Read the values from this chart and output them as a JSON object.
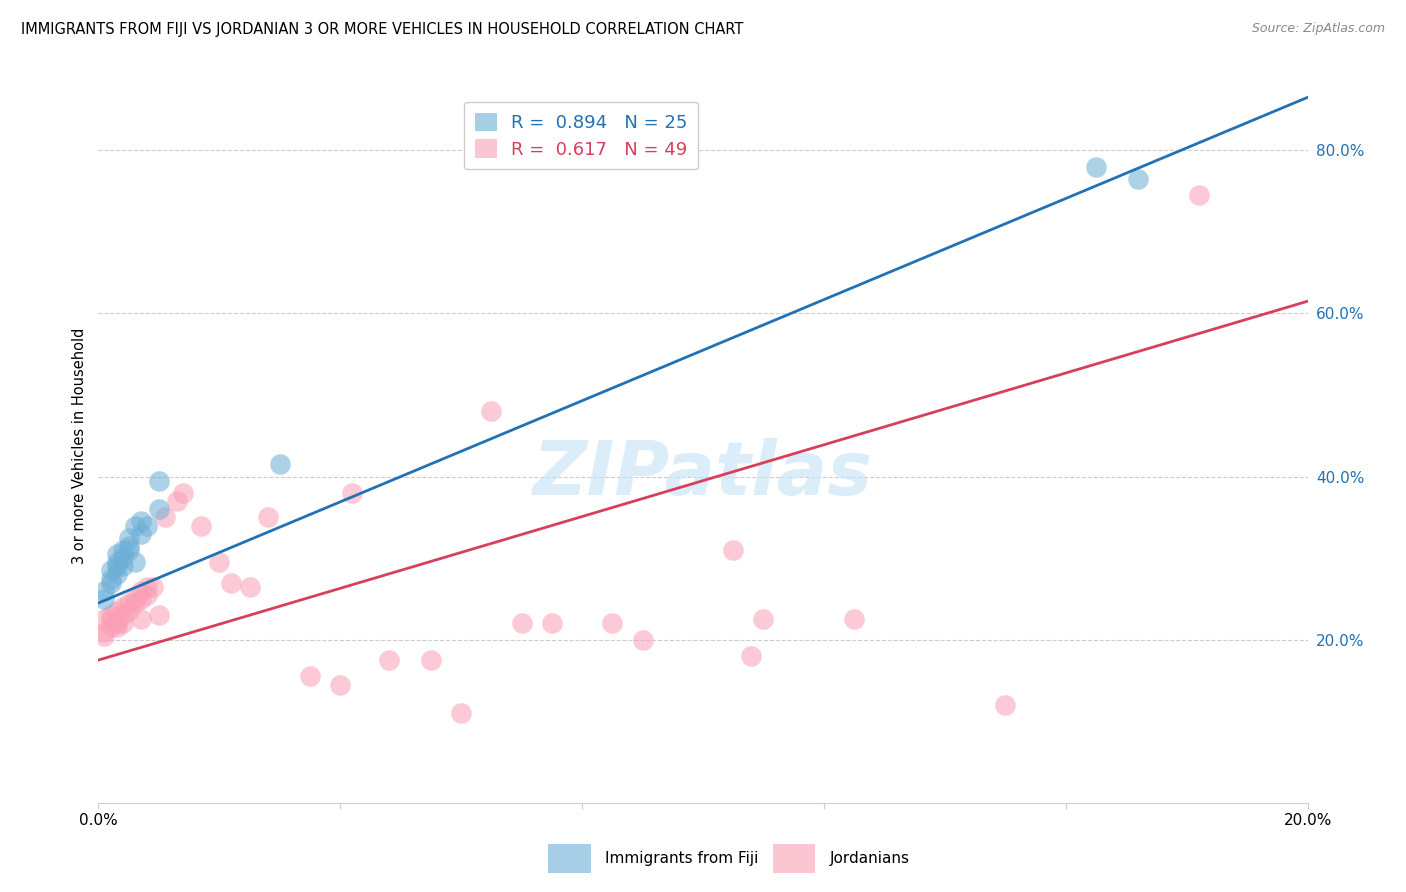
{
  "title": "IMMIGRANTS FROM FIJI VS JORDANIAN 3 OR MORE VEHICLES IN HOUSEHOLD CORRELATION CHART",
  "source": "Source: ZipAtlas.com",
  "ylabel": "3 or more Vehicles in Household",
  "watermark": "ZIPatlas",
  "legend_fiji_R": "0.894",
  "legend_fiji_N": "25",
  "legend_jordan_R": "0.617",
  "legend_jordan_N": "49",
  "fiji_color": "#6baed6",
  "jordan_color": "#fa9fb5",
  "fiji_line_color": "#2171b5",
  "jordan_line_color": "#d6405a",
  "xlim": [
    0.0,
    0.2
  ],
  "ylim": [
    0.0,
    0.875
  ],
  "x_ticks": [
    0.0,
    0.04,
    0.08,
    0.12,
    0.16,
    0.2
  ],
  "x_tick_labels": [
    "0.0%",
    "",
    "",
    "",
    "",
    "20.0%"
  ],
  "y_ticks_right": [
    0.2,
    0.4,
    0.6,
    0.8
  ],
  "y_tick_labels_right": [
    "20.0%",
    "40.0%",
    "60.0%",
    "80.0%"
  ],
  "fiji_line": {
    "x0": 0.0,
    "y0": 0.245,
    "x1": 0.2,
    "y1": 0.865
  },
  "jordan_line": {
    "x0": 0.0,
    "y0": 0.175,
    "x1": 0.2,
    "y1": 0.615
  },
  "fiji_x": [
    0.001,
    0.001,
    0.002,
    0.002,
    0.002,
    0.003,
    0.003,
    0.003,
    0.003,
    0.004,
    0.004,
    0.004,
    0.005,
    0.005,
    0.005,
    0.006,
    0.006,
    0.007,
    0.007,
    0.008,
    0.01,
    0.01,
    0.03,
    0.165,
    0.172
  ],
  "fiji_y": [
    0.26,
    0.25,
    0.275,
    0.285,
    0.27,
    0.295,
    0.29,
    0.28,
    0.305,
    0.31,
    0.3,
    0.29,
    0.315,
    0.325,
    0.31,
    0.34,
    0.295,
    0.33,
    0.345,
    0.34,
    0.395,
    0.36,
    0.415,
    0.78,
    0.765
  ],
  "jordan_x": [
    0.001,
    0.001,
    0.001,
    0.002,
    0.002,
    0.002,
    0.003,
    0.003,
    0.003,
    0.003,
    0.004,
    0.004,
    0.004,
    0.005,
    0.005,
    0.006,
    0.006,
    0.007,
    0.007,
    0.007,
    0.008,
    0.008,
    0.009,
    0.01,
    0.011,
    0.013,
    0.014,
    0.017,
    0.02,
    0.022,
    0.025,
    0.028,
    0.035,
    0.04,
    0.042,
    0.048,
    0.055,
    0.06,
    0.065,
    0.07,
    0.075,
    0.085,
    0.09,
    0.105,
    0.108,
    0.11,
    0.125,
    0.15,
    0.182
  ],
  "jordan_y": [
    0.205,
    0.21,
    0.225,
    0.215,
    0.225,
    0.23,
    0.22,
    0.225,
    0.235,
    0.215,
    0.22,
    0.23,
    0.24,
    0.245,
    0.235,
    0.245,
    0.25,
    0.25,
    0.225,
    0.26,
    0.255,
    0.265,
    0.265,
    0.23,
    0.35,
    0.37,
    0.38,
    0.34,
    0.295,
    0.27,
    0.265,
    0.35,
    0.155,
    0.145,
    0.38,
    0.175,
    0.175,
    0.11,
    0.48,
    0.22,
    0.22,
    0.22,
    0.2,
    0.31,
    0.18,
    0.225,
    0.225,
    0.12,
    0.745
  ]
}
